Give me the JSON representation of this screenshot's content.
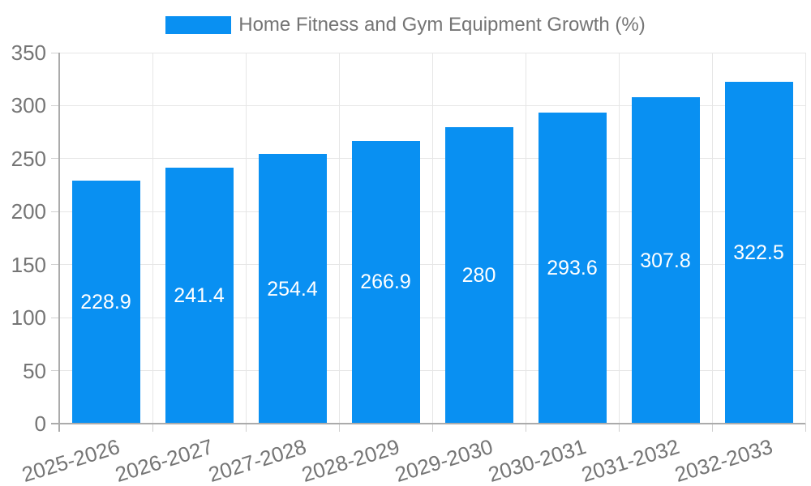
{
  "chart_data": {
    "type": "bar",
    "title": "Home Fitness and Gym Equipment Growth (%)",
    "legend": {
      "position": "top",
      "label": "Home Fitness and Gym Equipment Growth (%)"
    },
    "categories": [
      "2025-2026",
      "2026-2027",
      "2027-2028",
      "2028-2029",
      "2029-2030",
      "2030-2031",
      "2031-2032",
      "2032-2033"
    ],
    "series": [
      {
        "name": "Home Fitness and Gym Equipment Growth (%)",
        "values": [
          228.9,
          241.4,
          254.4,
          266.9,
          280,
          293.6,
          307.8,
          322.5
        ],
        "value_labels": [
          "228.9",
          "241.4",
          "254.4",
          "266.9",
          "280",
          "293.6",
          "307.8",
          "322.5"
        ]
      }
    ],
    "xlabel": "",
    "ylabel": "",
    "ylim": [
      0,
      350
    ],
    "ytick_step": 50,
    "yticks": [
      0,
      50,
      100,
      150,
      200,
      250,
      300,
      350
    ],
    "ytick_labels": [
      "0",
      "50",
      "100",
      "150",
      "200",
      "250",
      "300",
      "350"
    ],
    "grid": true,
    "x_label_rotation_deg": -17,
    "colors": {
      "bar": "#0990f2",
      "tick_label": "#757575",
      "legend_label": "#757575",
      "data_label": "#ffffff",
      "gridline": "#e6e6e6",
      "tick": "#d0d0d0",
      "axis": "#ababab",
      "background": "#ffffff"
    }
  }
}
